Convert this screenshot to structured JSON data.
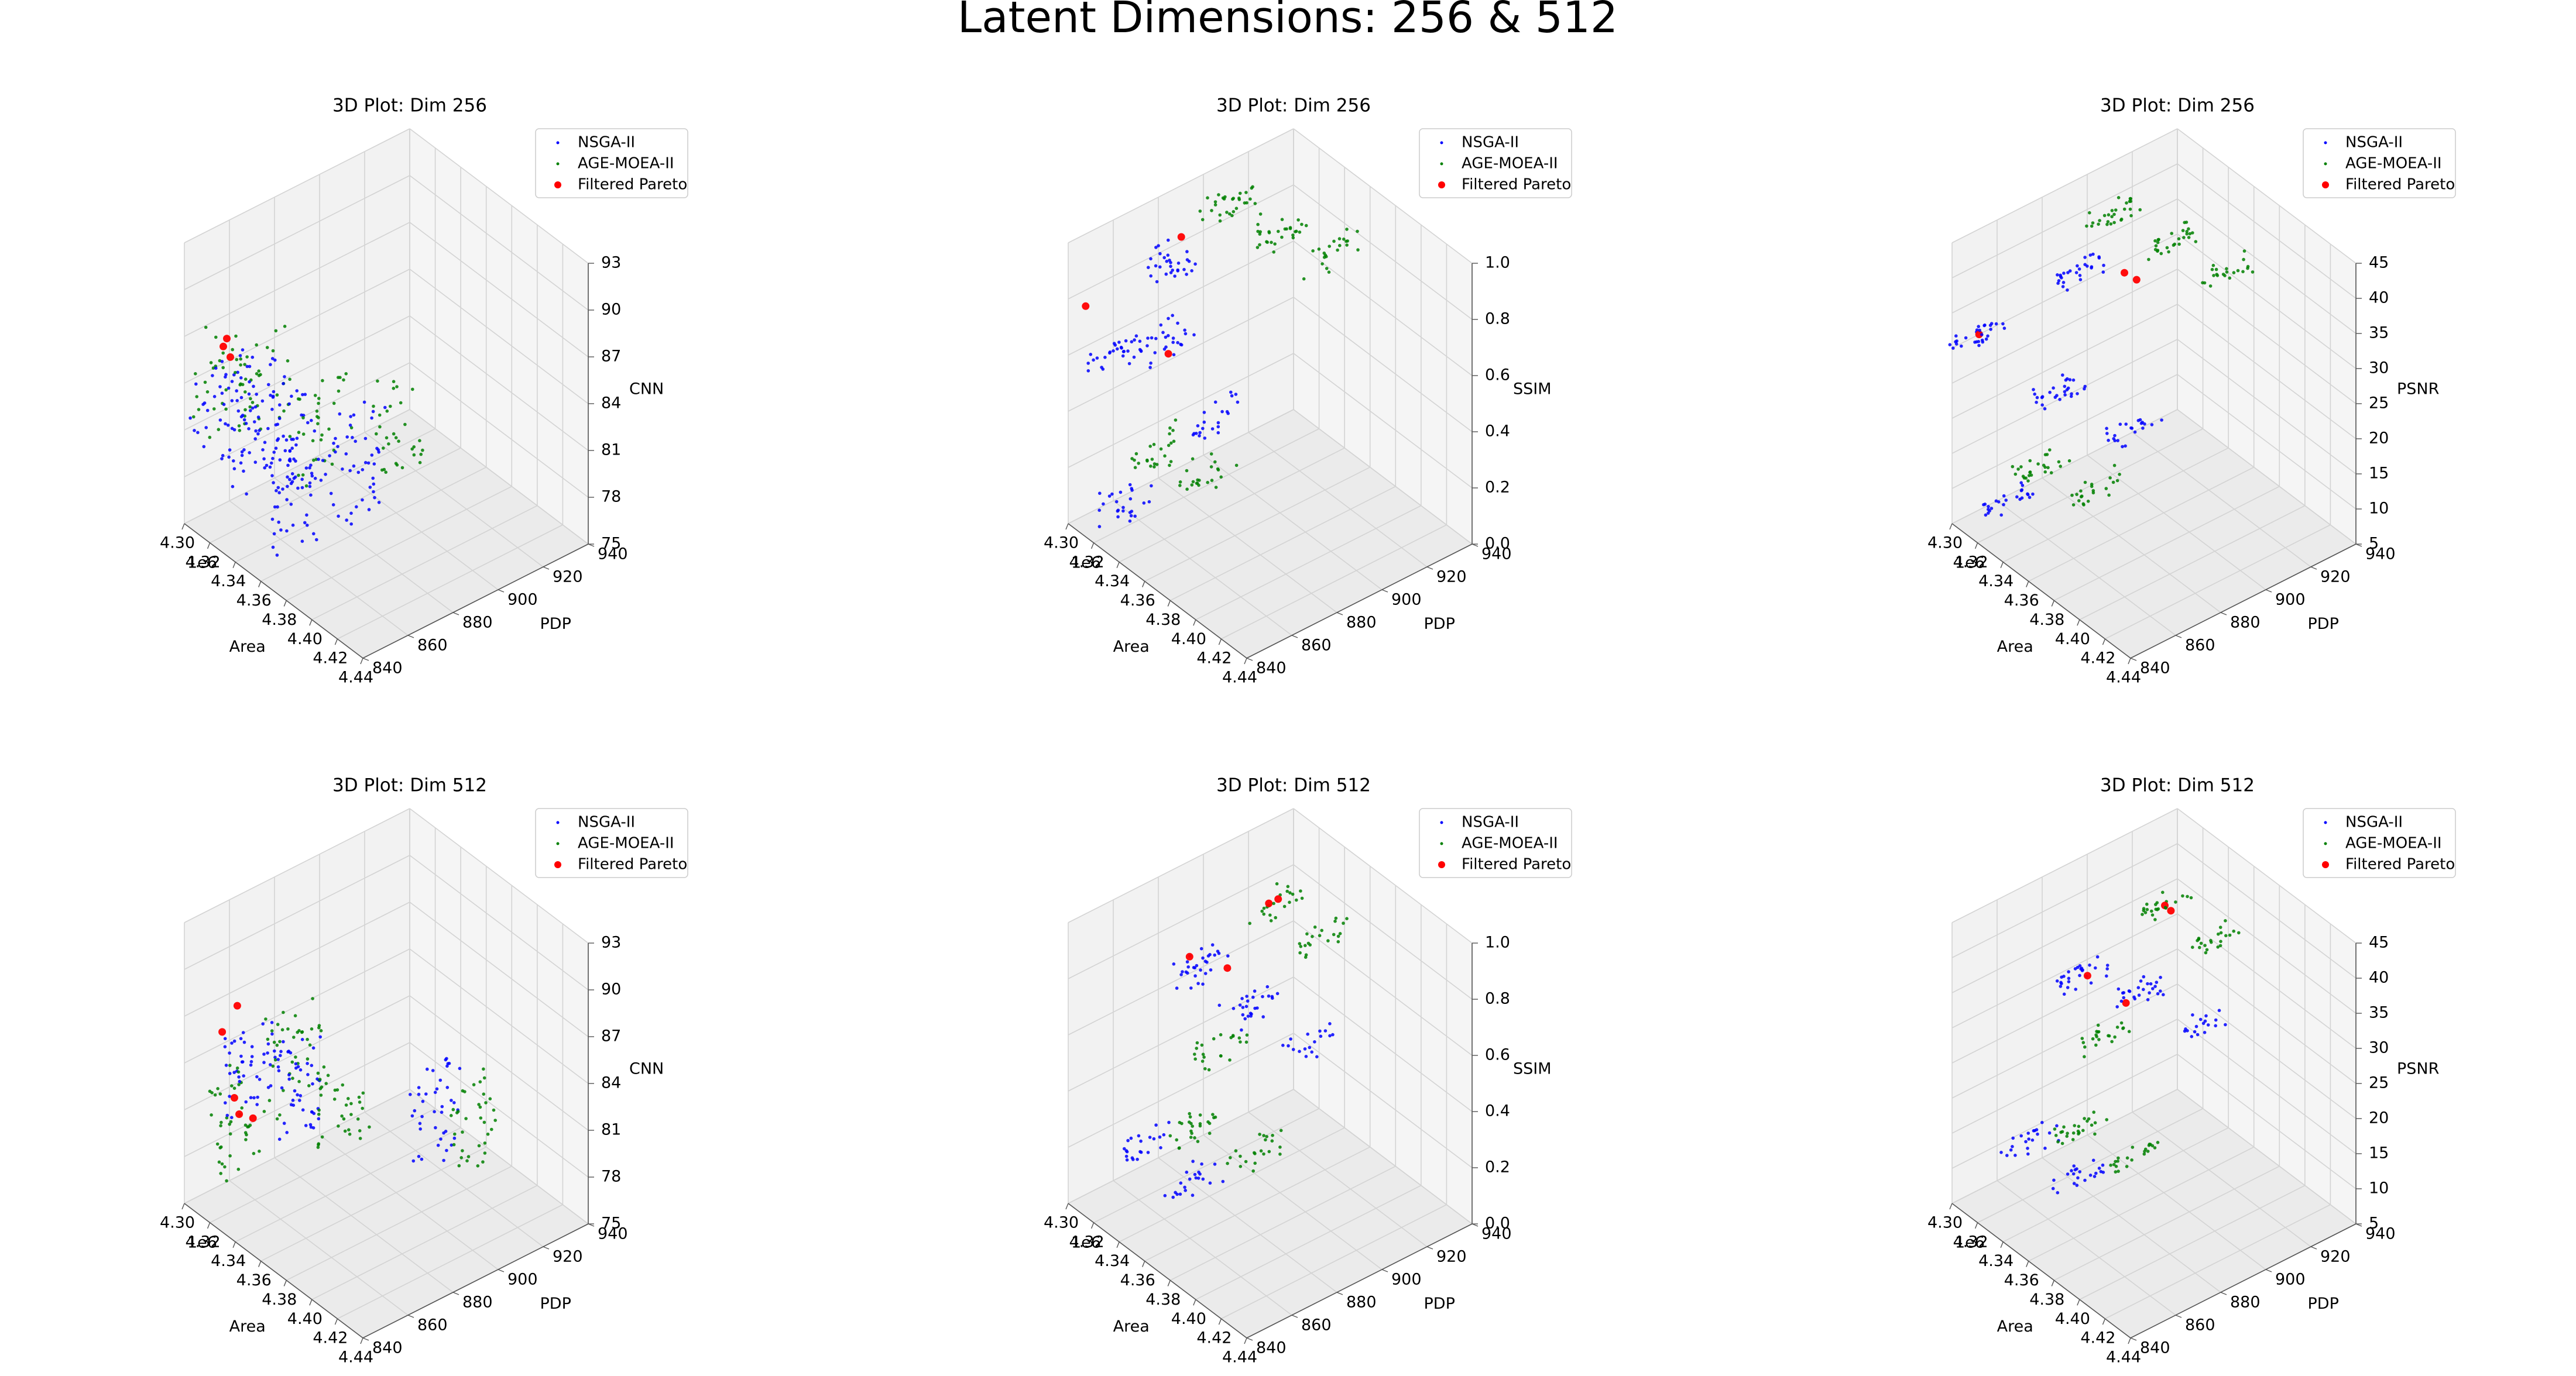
{
  "figure": {
    "suptitle": "Latent Dimensions: 256 & 512"
  },
  "legend": {
    "entries": [
      {
        "label": "NSGA-II",
        "color": "#0000ff",
        "marker": "small-dot"
      },
      {
        "label": "AGE-MOEA-II",
        "color": "#008000",
        "marker": "small-dot"
      },
      {
        "label": "Filtered Pareto",
        "color": "#ff0000",
        "marker": "large-dot"
      }
    ]
  },
  "axes_common": {
    "xlabel": "Area",
    "ylabel": "PDP",
    "x_offset_text": "1e6",
    "xlim": [
      4.3,
      4.44
    ],
    "xticks": [
      "4.30",
      "4.32",
      "4.34",
      "4.36",
      "4.38",
      "4.40",
      "4.42",
      "4.44"
    ],
    "ylim": [
      840,
      940
    ],
    "yticks": [
      "840",
      "860",
      "880",
      "900",
      "920",
      "940"
    ],
    "grid": true,
    "legend_placement": "upper-right"
  },
  "chart_data": [
    {
      "type": "scatter3d",
      "title": "3D Plot: Dim 256",
      "zlabel": "CNN",
      "zlim": [
        75,
        93
      ],
      "zticks": [
        "75",
        "78",
        "81",
        "84",
        "87",
        "90",
        "93"
      ],
      "series": [
        {
          "name": "NSGA-II",
          "color": "#0000ff",
          "clusters": [
            {
              "x": 4.308,
              "y": 852,
              "z": [
                78,
                85
              ],
              "n": 40
            },
            {
              "x": 4.328,
              "y": 856,
              "z": [
                78,
                86
              ],
              "n": 45
            },
            {
              "x": 4.346,
              "y": 860,
              "z": [
                77,
                86
              ],
              "n": 45
            },
            {
              "x": 4.362,
              "y": 855,
              "z": [
                76,
                84
              ],
              "n": 45
            },
            {
              "x": 4.38,
              "y": 870,
              "z": [
                78,
                86
              ],
              "n": 45
            }
          ]
        },
        {
          "name": "AGE-MOEA-II",
          "color": "#008000",
          "clusters": [
            {
              "x": 4.306,
              "y": 852,
              "z": [
                80,
                87
              ],
              "n": 30
            },
            {
              "x": 4.326,
              "y": 860,
              "z": [
                80,
                87
              ],
              "n": 32
            },
            {
              "x": 4.352,
              "y": 872,
              "z": [
                79,
                85
              ],
              "n": 32
            },
            {
              "x": 4.372,
              "y": 895,
              "z": [
                79,
                85
              ],
              "n": 32
            }
          ]
        },
        {
          "name": "Filtered Pareto",
          "color": "#ff0000",
          "points": [
            {
              "x": 4.304,
              "y": 855,
              "z": 85.5
            },
            {
              "x": 4.305,
              "y": 856,
              "z": 86.0
            },
            {
              "x": 4.306,
              "y": 857,
              "z": 84.8
            }
          ]
        }
      ]
    },
    {
      "type": "scatter3d",
      "title": "3D Plot: Dim 256",
      "zlabel": "SSIM",
      "zlim": [
        0.0,
        1.0
      ],
      "zticks": [
        "0.0",
        "0.2",
        "0.4",
        "0.6",
        "0.8",
        "1.0"
      ],
      "series": [
        {
          "name": "NSGA-II",
          "color": "#0000ff",
          "clusters": [
            {
              "x": 4.312,
              "y": 880,
              "z": [
                0.72,
                0.88
              ],
              "n": 30
            },
            {
              "x": 4.325,
              "y": 868,
              "z": [
                0.58,
                0.68
              ],
              "n": 28
            },
            {
              "x": 4.3,
              "y": 860,
              "z": [
                0.48,
                0.56
              ],
              "n": 28
            },
            {
              "x": 4.352,
              "y": 878,
              "z": [
                0.35,
                0.45
              ],
              "n": 22
            },
            {
              "x": 4.322,
              "y": 852,
              "z": [
                0.05,
                0.15
              ],
              "n": 25
            }
          ]
        },
        {
          "name": "AGE-MOEA-II",
          "color": "#008000",
          "clusters": [
            {
              "x": 4.32,
              "y": 900,
              "z": [
                0.9,
                1.0
              ],
              "n": 30
            },
            {
              "x": 4.342,
              "y": 910,
              "z": [
                0.85,
                0.95
              ],
              "n": 28
            },
            {
              "x": 4.36,
              "y": 922,
              "z": [
                0.78,
                0.88
              ],
              "n": 22
            },
            {
              "x": 4.318,
              "y": 870,
              "z": [
                0.15,
                0.25
              ],
              "n": 25
            },
            {
              "x": 4.34,
              "y": 880,
              "z": [
                0.12,
                0.22
              ],
              "n": 22
            }
          ]
        },
        {
          "name": "Filtered Pareto",
          "color": "#ff0000",
          "points": [
            {
              "x": 4.296,
              "y": 850,
              "z": 0.72
            },
            {
              "x": 4.318,
              "y": 880,
              "z": 0.92
            },
            {
              "x": 4.322,
              "y": 872,
              "z": 0.55
            }
          ]
        }
      ]
    },
    {
      "type": "scatter3d",
      "title": "3D Plot: Dim 256",
      "zlabel": "PSNR",
      "zlim": [
        5,
        45
      ],
      "zticks": [
        "5",
        "10",
        "15",
        "20",
        "25",
        "30",
        "35",
        "40",
        "45"
      ],
      "series": [
        {
          "name": "NSGA-II",
          "color": "#0000ff",
          "clusters": [
            {
              "x": 4.3,
              "y": 850,
              "z": [
                29,
                31
              ],
              "n": 30
            },
            {
              "x": 4.318,
              "y": 885,
              "z": [
                35,
                37
              ],
              "n": 28
            },
            {
              "x": 4.33,
              "y": 870,
              "z": [
                22,
                24
              ],
              "n": 28
            },
            {
              "x": 4.355,
              "y": 890,
              "z": [
                17,
                19
              ],
              "n": 22
            },
            {
              "x": 4.322,
              "y": 852,
              "z": [
                8,
                10
              ],
              "n": 25
            }
          ]
        },
        {
          "name": "AGE-MOEA-II",
          "color": "#008000",
          "clusters": [
            {
              "x": 4.32,
              "y": 900,
              "z": [
                41,
                43
              ],
              "n": 28
            },
            {
              "x": 4.345,
              "y": 912,
              "z": [
                39,
                41
              ],
              "n": 28
            },
            {
              "x": 4.365,
              "y": 925,
              "z": [
                35,
                37
              ],
              "n": 22
            },
            {
              "x": 4.318,
              "y": 870,
              "z": [
                10,
                12
              ],
              "n": 25
            },
            {
              "x": 4.342,
              "y": 882,
              "z": [
                8,
                10
              ],
              "n": 22
            }
          ]
        },
        {
          "name": "Filtered Pareto",
          "color": "#ff0000",
          "points": [
            {
              "x": 4.3,
              "y": 852,
              "z": 30
            },
            {
              "x": 4.338,
              "y": 895,
              "z": 37
            },
            {
              "x": 4.344,
              "y": 897,
              "z": 36.5
            }
          ]
        }
      ]
    },
    {
      "type": "scatter3d",
      "title": "3D Plot: Dim 512",
      "zlabel": "CNN",
      "zlim": [
        75,
        93
      ],
      "zticks": [
        "75",
        "78",
        "81",
        "84",
        "87",
        "90",
        "93"
      ],
      "series": [
        {
          "name": "NSGA-II",
          "color": "#0000ff",
          "clusters": [
            {
              "x": 4.32,
              "y": 860,
              "z": [
                81,
                86
              ],
              "n": 45
            },
            {
              "x": 4.34,
              "y": 868,
              "z": [
                80,
                86
              ],
              "n": 45
            },
            {
              "x": 4.39,
              "y": 900,
              "z": [
                79,
                85
              ],
              "n": 40
            }
          ]
        },
        {
          "name": "AGE-MOEA-II",
          "color": "#008000",
          "clusters": [
            {
              "x": 4.318,
              "y": 852,
              "z": [
                77,
                84
              ],
              "n": 40
            },
            {
              "x": 4.332,
              "y": 870,
              "z": [
                81,
                87
              ],
              "n": 40
            },
            {
              "x": 4.352,
              "y": 880,
              "z": [
                79,
                85
              ],
              "n": 35
            },
            {
              "x": 4.398,
              "y": 912,
              "z": [
                78,
                84
              ],
              "n": 35
            }
          ]
        },
        {
          "name": "Filtered Pareto",
          "color": "#ff0000",
          "points": [
            {
              "x": 4.312,
              "y": 850,
              "z": 86
            },
            {
              "x": 4.315,
              "y": 855,
              "z": 87.5
            },
            {
              "x": 4.318,
              "y": 852,
              "z": 82
            },
            {
              "x": 4.32,
              "y": 853,
              "z": 81
            },
            {
              "x": 4.322,
              "y": 858,
              "z": 80.5
            }
          ]
        }
      ]
    },
    {
      "type": "scatter3d",
      "title": "3D Plot: Dim 512",
      "zlabel": "SSIM",
      "zlim": [
        0.0,
        1.0
      ],
      "zticks": [
        "0.0",
        "0.2",
        "0.4",
        "0.6",
        "0.8",
        "1.0"
      ],
      "series": [
        {
          "name": "NSGA-II",
          "color": "#0000ff",
          "clusters": [
            {
              "x": 4.33,
              "y": 880,
              "z": [
                0.72,
                0.82
              ],
              "n": 30
            },
            {
              "x": 4.355,
              "y": 890,
              "z": [
                0.64,
                0.72
              ],
              "n": 26
            },
            {
              "x": 4.375,
              "y": 905,
              "z": [
                0.52,
                0.6
              ],
              "n": 18
            },
            {
              "x": 4.325,
              "y": 860,
              "z": [
                0.18,
                0.26
              ],
              "n": 22
            },
            {
              "x": 4.345,
              "y": 870,
              "z": [
                0.08,
                0.16
              ],
              "n": 22
            }
          ]
        },
        {
          "name": "AGE-MOEA-II",
          "color": "#008000",
          "clusters": [
            {
              "x": 4.345,
              "y": 905,
              "z": [
                0.92,
                1.0
              ],
              "n": 22
            },
            {
              "x": 4.37,
              "y": 915,
              "z": [
                0.85,
                0.93
              ],
              "n": 22
            },
            {
              "x": 4.348,
              "y": 880,
              "z": [
                0.52,
                0.6
              ],
              "n": 22
            },
            {
              "x": 4.338,
              "y": 875,
              "z": [
                0.22,
                0.3
              ],
              "n": 25
            },
            {
              "x": 4.36,
              "y": 888,
              "z": [
                0.15,
                0.24
              ],
              "n": 22
            }
          ]
        },
        {
          "name": "Filtered Pareto",
          "color": "#ff0000",
          "points": [
            {
              "x": 4.328,
              "y": 878,
              "z": 0.82
            },
            {
              "x": 4.346,
              "y": 903,
              "z": 0.97
            },
            {
              "x": 4.348,
              "y": 906,
              "z": 0.98
            },
            {
              "x": 4.34,
              "y": 888,
              "z": 0.78
            }
          ]
        }
      ]
    },
    {
      "type": "scatter3d",
      "title": "3D Plot: Dim 512",
      "zlabel": "PSNR",
      "zlim": [
        5,
        45
      ],
      "zticks": [
        "5",
        "10",
        "15",
        "20",
        "25",
        "30",
        "35",
        "40",
        "45"
      ],
      "series": [
        {
          "name": "NSGA-II",
          "color": "#0000ff",
          "clusters": [
            {
              "x": 4.33,
              "y": 880,
              "z": [
                34,
                36
              ],
              "n": 28
            },
            {
              "x": 4.355,
              "y": 892,
              "z": [
                33,
                35
              ],
              "n": 26
            },
            {
              "x": 4.38,
              "y": 908,
              "z": [
                30,
                32
              ],
              "n": 18
            },
            {
              "x": 4.325,
              "y": 860,
              "z": [
                13,
                15
              ],
              "n": 22
            },
            {
              "x": 4.345,
              "y": 870,
              "z": [
                9,
                11
              ],
              "n": 22
            }
          ]
        },
        {
          "name": "AGE-MOEA-II",
          "color": "#008000",
          "clusters": [
            {
              "x": 4.35,
              "y": 905,
              "z": [
                43,
                45
              ],
              "n": 22
            },
            {
              "x": 4.372,
              "y": 915,
              "z": [
                39,
                41
              ],
              "n": 22
            },
            {
              "x": 4.345,
              "y": 882,
              "z": [
                27,
                29
              ],
              "n": 22
            },
            {
              "x": 4.338,
              "y": 875,
              "z": [
                14,
                16
              ],
              "n": 25
            },
            {
              "x": 4.36,
              "y": 888,
              "z": [
                11,
                13
              ],
              "n": 22
            }
          ]
        },
        {
          "name": "Filtered Pareto",
          "color": "#ff0000",
          "points": [
            {
              "x": 4.332,
              "y": 882,
              "z": 35
            },
            {
              "x": 4.352,
              "y": 905,
              "z": 44
            },
            {
              "x": 4.355,
              "y": 906,
              "z": 43.5
            },
            {
              "x": 4.348,
              "y": 890,
              "z": 32
            }
          ]
        }
      ]
    }
  ]
}
